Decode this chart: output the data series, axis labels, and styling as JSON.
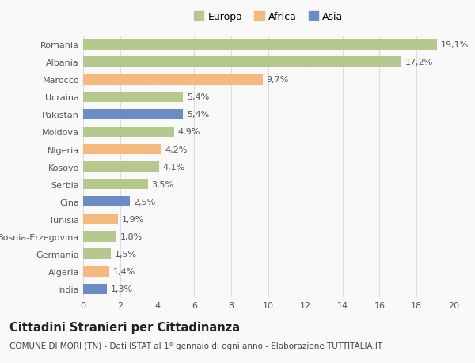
{
  "countries": [
    "Romania",
    "Albania",
    "Marocco",
    "Ucraina",
    "Pakistan",
    "Moldova",
    "Nigeria",
    "Kosovo",
    "Serbia",
    "Cina",
    "Tunisia",
    "Bosnia-Erzegovina",
    "Germania",
    "Algeria",
    "India"
  ],
  "values": [
    19.1,
    17.2,
    9.7,
    5.4,
    5.4,
    4.9,
    4.2,
    4.1,
    3.5,
    2.5,
    1.9,
    1.8,
    1.5,
    1.4,
    1.3
  ],
  "labels": [
    "19,1%",
    "17,2%",
    "9,7%",
    "5,4%",
    "5,4%",
    "4,9%",
    "4,2%",
    "4,1%",
    "3,5%",
    "2,5%",
    "1,9%",
    "1,8%",
    "1,5%",
    "1,4%",
    "1,3%"
  ],
  "continents": [
    "Europa",
    "Europa",
    "Africa",
    "Europa",
    "Asia",
    "Europa",
    "Africa",
    "Europa",
    "Europa",
    "Asia",
    "Africa",
    "Europa",
    "Europa",
    "Africa",
    "Asia"
  ],
  "colors": {
    "Europa": "#b5c98e",
    "Africa": "#f5b97f",
    "Asia": "#6b8cc7"
  },
  "title": "Cittadini Stranieri per Cittadinanza",
  "subtitle": "COMUNE DI MORI (TN) - Dati ISTAT al 1° gennaio di ogni anno - Elaborazione TUTTITALIA.IT",
  "xlim": [
    0,
    20
  ],
  "xticks": [
    0,
    2,
    4,
    6,
    8,
    10,
    12,
    14,
    16,
    18,
    20
  ],
  "background_color": "#f9f9f9",
  "grid_color": "#dddddd",
  "bar_height": 0.6,
  "label_fontsize": 8,
  "tick_fontsize": 8,
  "title_fontsize": 10.5,
  "subtitle_fontsize": 7.5
}
